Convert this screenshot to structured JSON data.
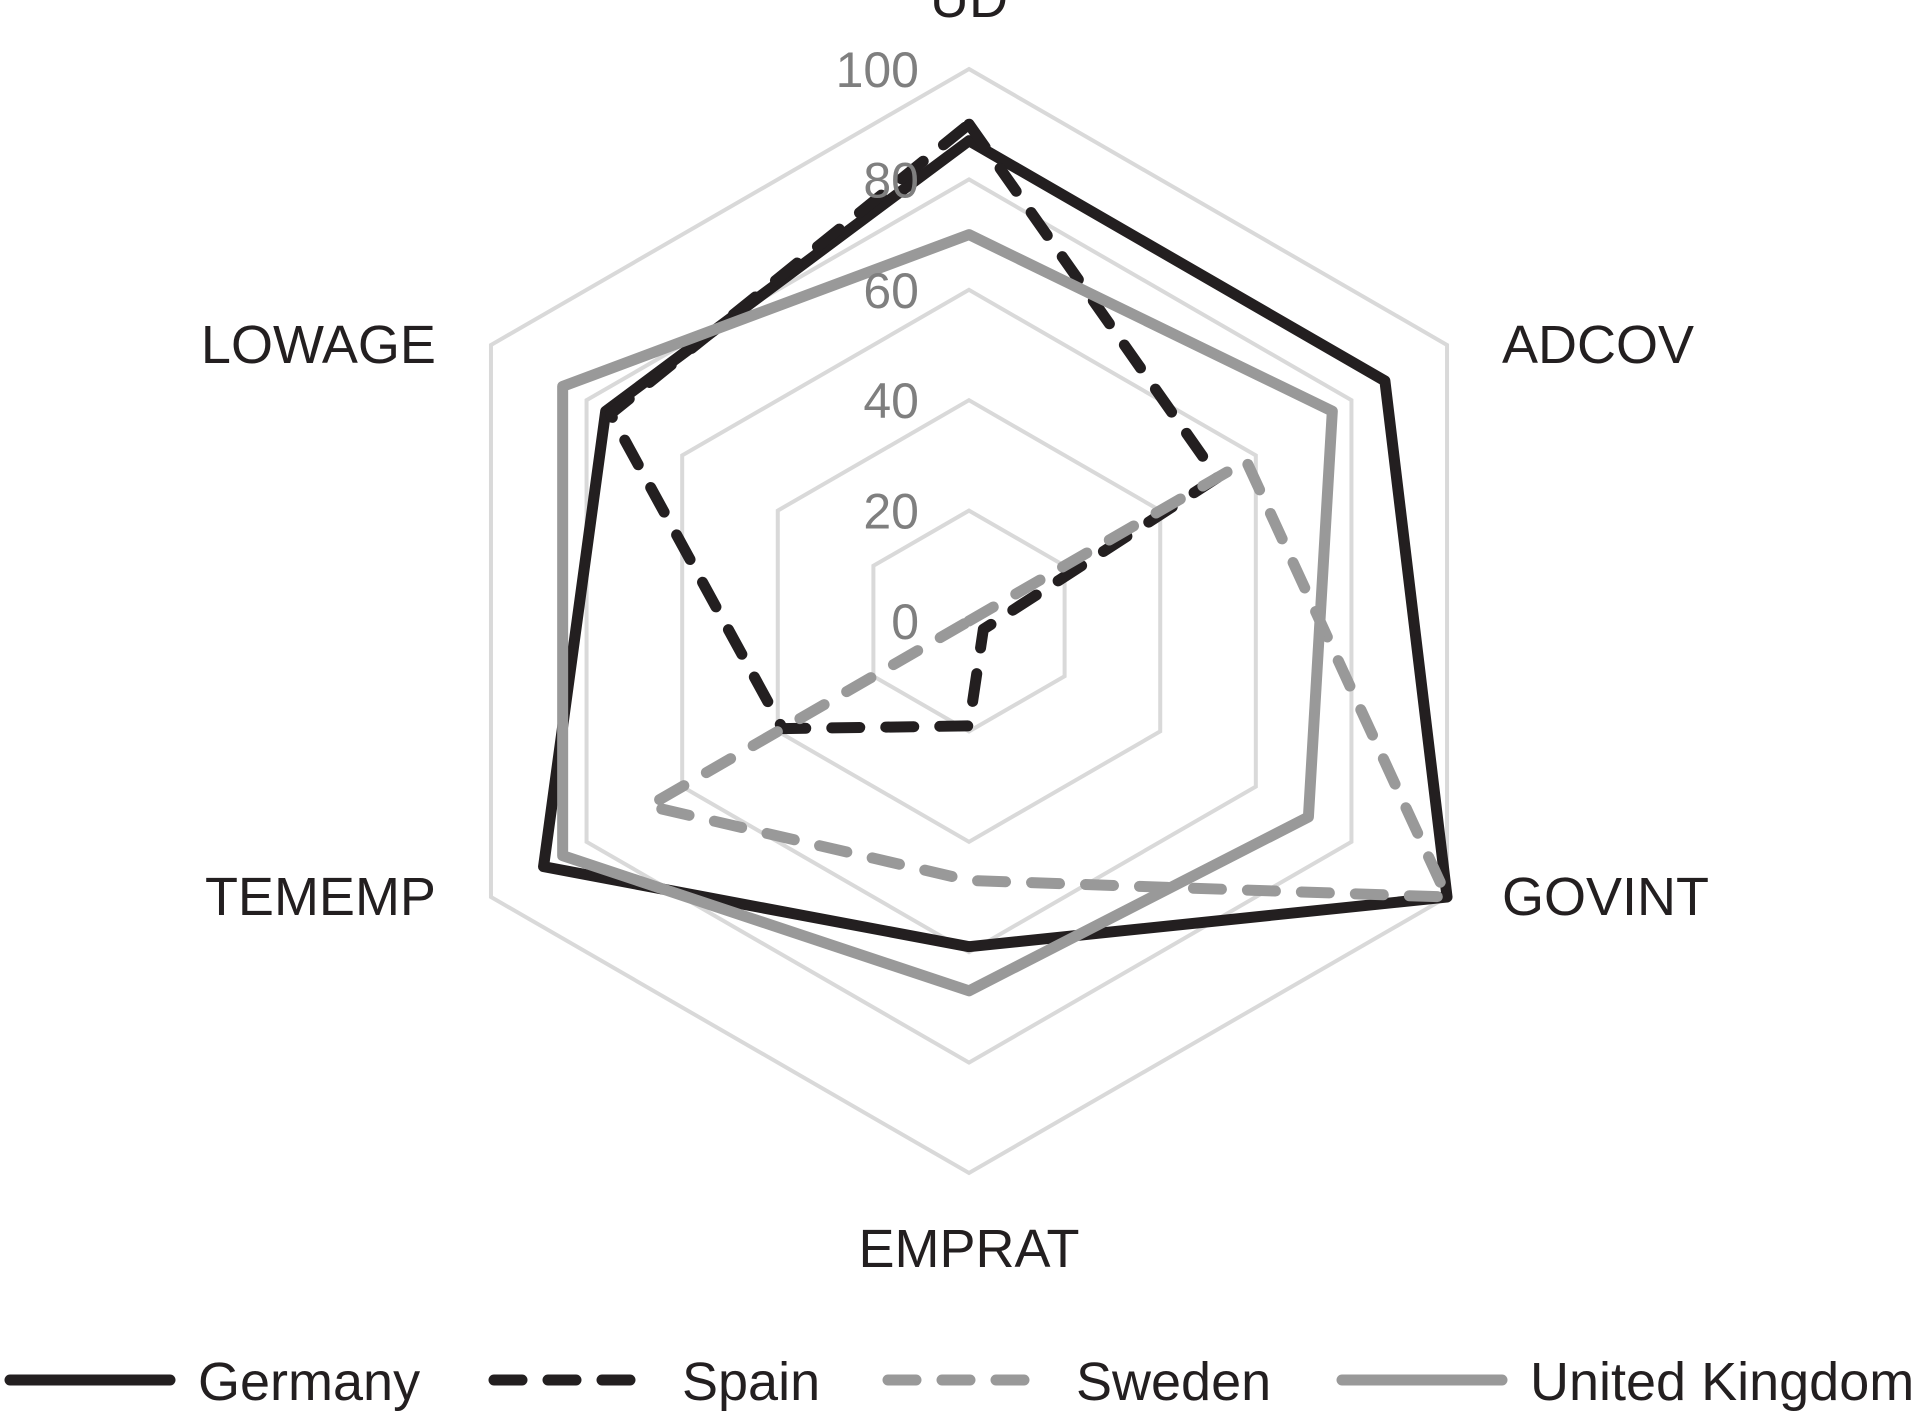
{
  "chart_data": {
    "type": "radar",
    "axes": [
      "UD",
      "ADCOV",
      "GOVINT",
      "EMPRAT",
      "TEMEMP",
      "LOWAGE"
    ],
    "rlim": [
      0,
      100
    ],
    "ticks": [
      "0",
      "20",
      "40",
      "60",
      "80",
      "100"
    ],
    "grid": true,
    "legend_position": "bottom",
    "series": [
      {
        "name": "Germany",
        "values": [
          87,
          87,
          100,
          59,
          89,
          76
        ],
        "color": "#231f20",
        "dash": "solid"
      },
      {
        "name": "Spain",
        "values": [
          90,
          52,
          3,
          19,
          39,
          75
        ],
        "color": "#231f20",
        "dash": "dashed"
      },
      {
        "name": "Sweden",
        "values": [
          0,
          58,
          100,
          47,
          67,
          0
        ],
        "color": "#999999",
        "dash": "dashed"
      },
      {
        "name": "United Kingdom",
        "values": [
          70,
          76,
          71,
          67,
          85,
          85
        ],
        "color": "#999999",
        "dash": "solid"
      }
    ],
    "grid_color": "#d9d9d9",
    "tick_color": "#7f7f7f",
    "label_color": "#231f20"
  }
}
